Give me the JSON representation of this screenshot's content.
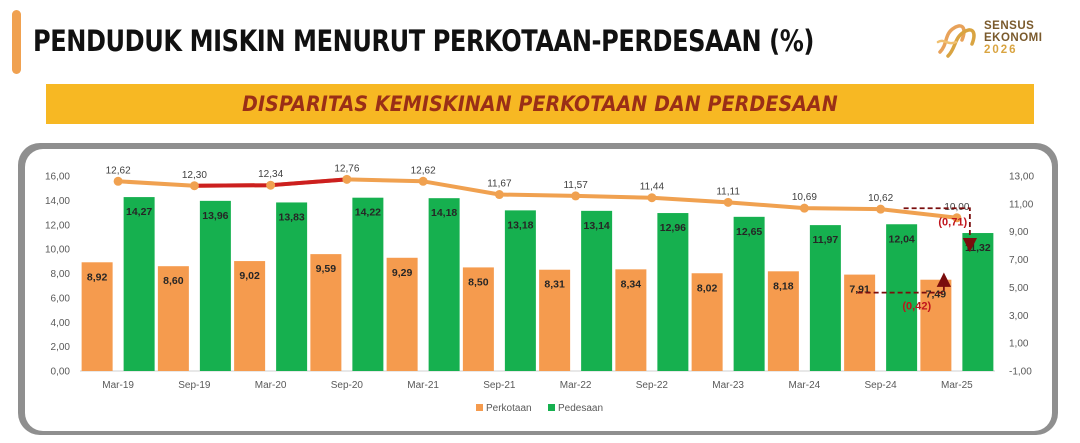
{
  "header": {
    "title": "PENDUDUK MISKIN MENURUT PERKOTAAN-PERDESAAN (%)",
    "banner": "DISPARITAS KEMISKINAN PERKOTAAN DAN PERDESAAN"
  },
  "logo": {
    "line1": "SENSUS",
    "line2": "EKONOMI",
    "year": "2026"
  },
  "colors": {
    "accent": "#f0a150",
    "banner": "#f7b823",
    "banner_text": "#9a2f17",
    "perkotaan": "#f59b4e",
    "pedesaan": "#16b04f",
    "disparity_line": "#f0a150",
    "disparity_highlight": "#cc1f1f",
    "annotation": "#c0141c"
  },
  "chart_data": {
    "type": "bar",
    "categories": [
      "Mar-19",
      "Sep-19",
      "Mar-20",
      "Sep-20",
      "Mar-21",
      "Sep-21",
      "Mar-22",
      "Sep-22",
      "Mar-23",
      "Mar-24",
      "Sep-24",
      "Mar-25"
    ],
    "series": [
      {
        "name": "Perkotaan",
        "type": "bar",
        "axis": "left",
        "values": [
          8.92,
          8.6,
          9.02,
          9.59,
          9.29,
          8.5,
          8.31,
          8.34,
          8.02,
          8.18,
          7.91,
          7.49
        ],
        "labels": [
          "8,92",
          "8,60",
          "9,02",
          "9,59",
          "9,29",
          "8,50",
          "8,31",
          "8,34",
          "8,02",
          "8,18",
          "7,91",
          "7,49"
        ]
      },
      {
        "name": "Pedesaan",
        "type": "bar",
        "axis": "left",
        "values": [
          14.27,
          13.96,
          13.83,
          14.22,
          14.18,
          13.18,
          13.14,
          12.96,
          12.65,
          11.97,
          12.04,
          11.32
        ],
        "labels": [
          "14,27",
          "13,96",
          "13,83",
          "14,22",
          "14,18",
          "13,18",
          "13,14",
          "12,96",
          "12,65",
          "11,97",
          "12,04",
          "11,32"
        ]
      },
      {
        "type": "line",
        "axis": "right",
        "values": [
          12.62,
          12.3,
          12.34,
          12.76,
          12.62,
          11.67,
          11.57,
          11.44,
          11.11,
          10.69,
          10.62,
          10.0
        ],
        "labels": [
          "12,62",
          "12,30",
          "12,34",
          "12,76",
          "12,62",
          "11,67",
          "11,57",
          "11,44",
          "11,11",
          "10,69",
          "10,62",
          "10,00"
        ],
        "highlight_range": [
          1,
          3
        ]
      }
    ],
    "y_left": {
      "min": 0,
      "max": 16,
      "ticks": [
        "0,00",
        "2,00",
        "4,00",
        "6,00",
        "8,00",
        "10,00",
        "12,00",
        "14,00",
        "16,00"
      ]
    },
    "y_right": {
      "min": -1,
      "max": 13,
      "ticks": [
        "-1,00",
        "1,00",
        "3,00",
        "5,00",
        "7,00",
        "9,00",
        "11,00",
        "13,00"
      ]
    },
    "annotations": [
      {
        "text": "(0,71)",
        "series": "Pedesaan",
        "from": "Sep-24",
        "to": "Mar-25"
      },
      {
        "text": "(0,42)",
        "series": "Perkotaan",
        "from": "Sep-24",
        "to": "Mar-25"
      }
    ],
    "legend": {
      "position": "bottom",
      "items": [
        "Perkotaan",
        "Pedesaan"
      ]
    },
    "grid": false
  }
}
